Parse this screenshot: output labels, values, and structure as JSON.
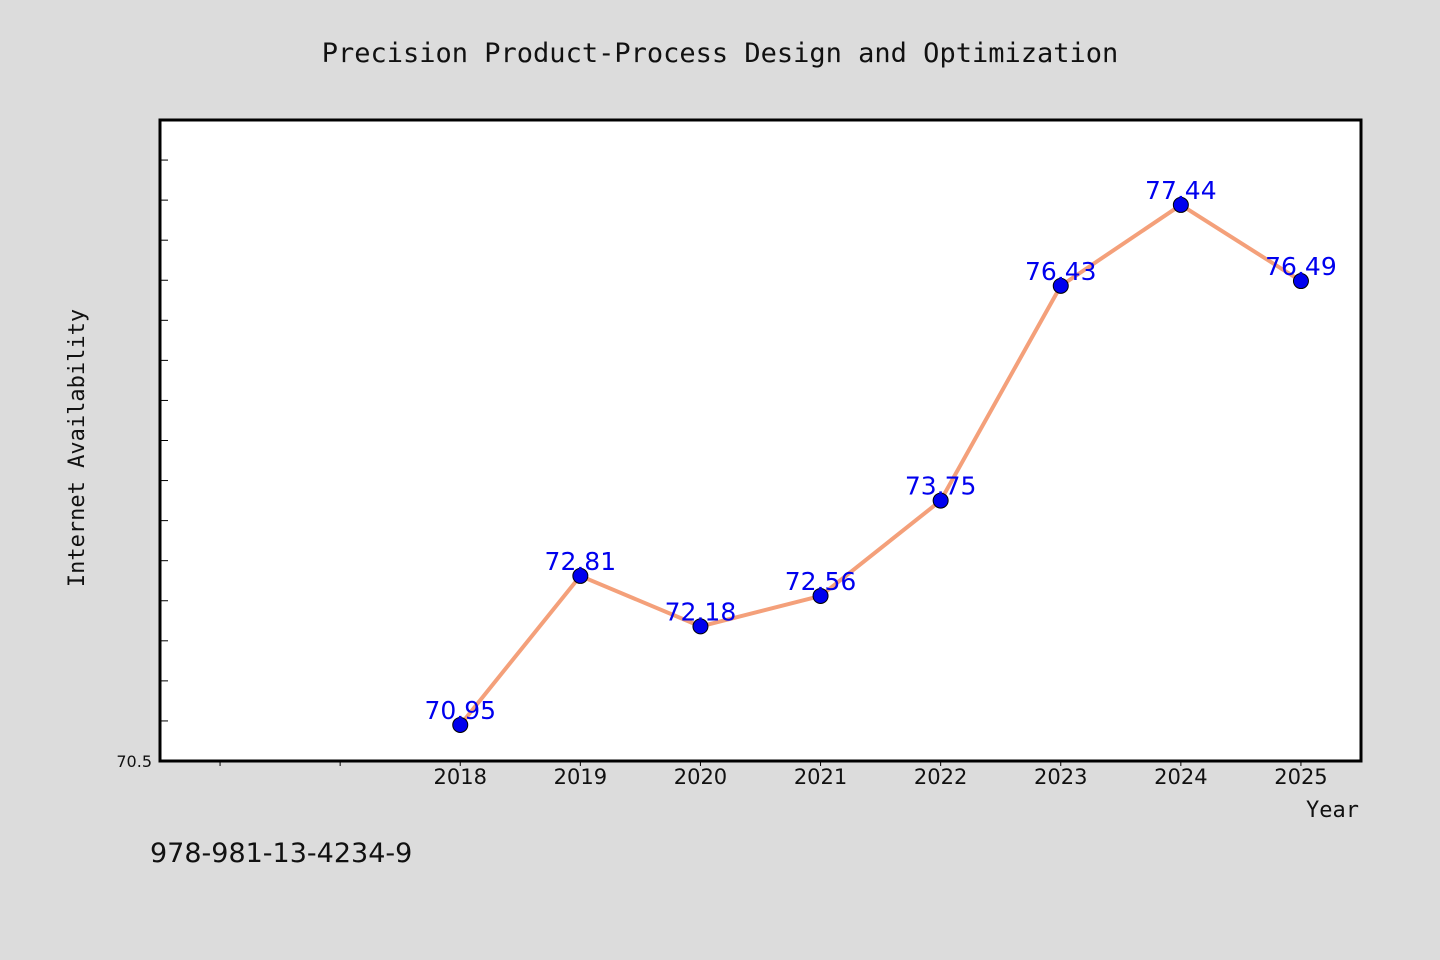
{
  "chart_data": {
    "type": "line",
    "title": "Precision Product-Process Design and Optimization",
    "xlabel": "Year",
    "ylabel": "Internet Availability",
    "categories": [
      "2018",
      "2019",
      "2020",
      "2021",
      "2022",
      "2023",
      "2024",
      "2025"
    ],
    "series": [
      {
        "values": [
          70.95,
          72.81,
          72.18,
          72.56,
          73.75,
          76.43,
          77.44,
          76.49
        ],
        "data_labels": [
          "70.95",
          "72.81",
          "72.18",
          "72.56",
          "73.75",
          "76.43",
          "77.44",
          "76.49"
        ]
      }
    ],
    "x_range": [
      2015.5,
      2025.5
    ],
    "ylim": [
      70.5,
      78.5
    ],
    "y_tick_labels": [
      {
        "value": 70.5,
        "label": "70.5"
      }
    ],
    "y_minor_step": 0.5,
    "grid": false,
    "legend": "none",
    "colors": {
      "line": "#f4a07a",
      "marker": "#0000ee",
      "data_label": "#0000ee",
      "plot_background": "#ffffff",
      "page_background": "#dcdcdc"
    }
  },
  "footnote": "978-981-13-4234-9"
}
